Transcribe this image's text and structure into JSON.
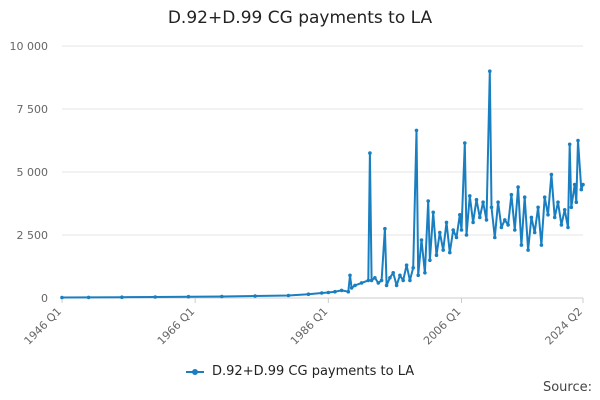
{
  "chart_data": {
    "type": "line",
    "title": "D.92+D.99 CG payments to LA",
    "xlabel": "",
    "ylabel": "",
    "x_tick_labels": [
      "1946 Q1",
      "1966 Q1",
      "1986 Q1",
      "2006 Q1",
      "2024 Q2"
    ],
    "y_tick_labels": [
      "0",
      "2 500",
      "5 000",
      "7 500",
      "10 000"
    ],
    "ylim": [
      0,
      10000
    ],
    "xlim": [
      "1946 Q1",
      "2024 Q2"
    ],
    "grid": "horizontal",
    "legend_position": "bottom",
    "series": [
      {
        "name": "D.92+D.99 CG payments to LA",
        "color": "#1a7fc1",
        "points": [
          [
            "1946 Q1",
            20
          ],
          [
            "1950 Q1",
            25
          ],
          [
            "1955 Q1",
            30
          ],
          [
            "1960 Q1",
            40
          ],
          [
            "1965 Q1",
            50
          ],
          [
            "1970 Q1",
            60
          ],
          [
            "1975 Q1",
            80
          ],
          [
            "1980 Q1",
            100
          ],
          [
            "1983 Q1",
            150
          ],
          [
            "1985 Q1",
            200
          ],
          [
            "1986 Q1",
            220
          ],
          [
            "1987 Q1",
            250
          ],
          [
            "1988 Q1",
            300
          ],
          [
            "1989 Q1",
            250
          ],
          [
            "1989 Q2",
            900
          ],
          [
            "1989 Q3",
            400
          ],
          [
            "1990 Q1",
            500
          ],
          [
            "1991 Q1",
            600
          ],
          [
            "1992 Q1",
            700
          ],
          [
            "1992 Q2",
            5750
          ],
          [
            "1992 Q3",
            700
          ],
          [
            "1993 Q1",
            800
          ],
          [
            "1993 Q3",
            600
          ],
          [
            "1994 Q1",
            700
          ],
          [
            "1994 Q3",
            2750
          ],
          [
            "1994 Q4",
            500
          ],
          [
            "1995 Q2",
            800
          ],
          [
            "1995 Q4",
            1000
          ],
          [
            "1996 Q2",
            500
          ],
          [
            "1996 Q4",
            900
          ],
          [
            "1997 Q2",
            700
          ],
          [
            "1997 Q4",
            1300
          ],
          [
            "1998 Q2",
            700
          ],
          [
            "1998 Q4",
            1200
          ],
          [
            "1999 Q2",
            6650
          ],
          [
            "1999 Q3",
            900
          ],
          [
            "2000 Q1",
            2300
          ],
          [
            "2000 Q3",
            1000
          ],
          [
            "2001 Q1",
            3850
          ],
          [
            "2001 Q2",
            1500
          ],
          [
            "2001 Q4",
            3400
          ],
          [
            "2002 Q2",
            1700
          ],
          [
            "2002 Q4",
            2600
          ],
          [
            "2003 Q2",
            1900
          ],
          [
            "2003 Q4",
            3000
          ],
          [
            "2004 Q2",
            1800
          ],
          [
            "2004 Q4",
            2700
          ],
          [
            "2005 Q2",
            2400
          ],
          [
            "2005 Q4",
            3300
          ],
          [
            "2006 Q1",
            2700
          ],
          [
            "2006 Q3",
            6150
          ],
          [
            "2006 Q4",
            2500
          ],
          [
            "2007 Q2",
            4050
          ],
          [
            "2007 Q4",
            3000
          ],
          [
            "2008 Q2",
            3900
          ],
          [
            "2008 Q4",
            3200
          ],
          [
            "2009 Q2",
            3800
          ],
          [
            "2009 Q4",
            3100
          ],
          [
            "2010 Q2",
            9000
          ],
          [
            "2010 Q3",
            3600
          ],
          [
            "2011 Q1",
            2400
          ],
          [
            "2011 Q3",
            3800
          ],
          [
            "2012 Q1",
            2800
          ],
          [
            "2012 Q3",
            3100
          ],
          [
            "2013 Q1",
            2900
          ],
          [
            "2013 Q3",
            4100
          ],
          [
            "2014 Q1",
            2700
          ],
          [
            "2014 Q3",
            4400
          ],
          [
            "2015 Q1",
            2100
          ],
          [
            "2015 Q3",
            4000
          ],
          [
            "2016 Q1",
            1900
          ],
          [
            "2016 Q3",
            3200
          ],
          [
            "2017 Q1",
            2600
          ],
          [
            "2017 Q3",
            3600
          ],
          [
            "2018 Q1",
            2100
          ],
          [
            "2018 Q3",
            4000
          ],
          [
            "2019 Q1",
            3300
          ],
          [
            "2019 Q3",
            4900
          ],
          [
            "2020 Q1",
            3200
          ],
          [
            "2020 Q3",
            3800
          ],
          [
            "2021 Q1",
            2900
          ],
          [
            "2021 Q3",
            3500
          ],
          [
            "2022 Q1",
            2800
          ],
          [
            "2022 Q2",
            6100
          ],
          [
            "2022 Q3",
            3600
          ],
          [
            "2023 Q1",
            4500
          ],
          [
            "2023 Q2",
            3800
          ],
          [
            "2023 Q3",
            6250
          ],
          [
            "2024 Q1",
            4300
          ],
          [
            "2024 Q2",
            4500
          ]
        ]
      }
    ]
  },
  "footer": {
    "source_label": "Source:"
  }
}
